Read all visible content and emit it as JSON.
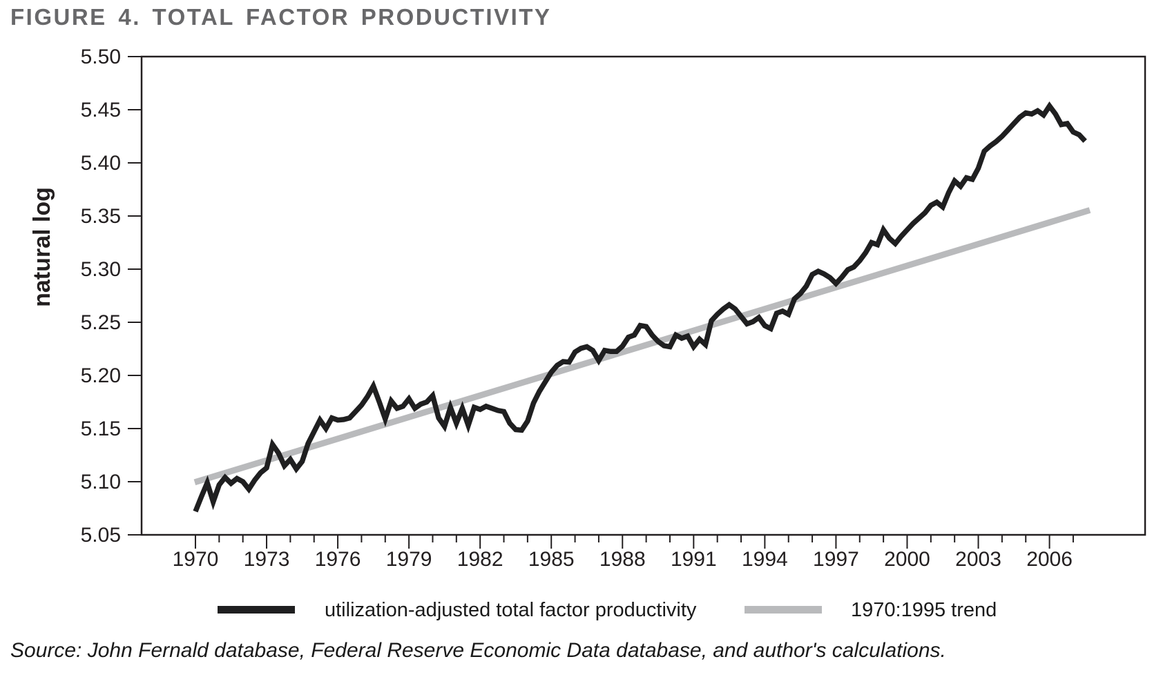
{
  "chart_data": {
    "type": "line",
    "title": "FIGURE 4. TOTAL FACTOR PRODUCTIVITY",
    "title_color": "#68686a",
    "xlabel": "",
    "ylabel": "natural log",
    "ylim": [
      5.05,
      5.5
    ],
    "xlim": [
      1967.73,
      2010.03
    ],
    "grid": false,
    "legend_position": "bottom",
    "axis_color": "#231f20",
    "y_ticks": [
      {
        "v": 5.05,
        "label": "5.05"
      },
      {
        "v": 5.1,
        "label": "5.10"
      },
      {
        "v": 5.15,
        "label": "5.15"
      },
      {
        "v": 5.2,
        "label": "5.20"
      },
      {
        "v": 5.25,
        "label": "5.25"
      },
      {
        "v": 5.3,
        "label": "5.30"
      },
      {
        "v": 5.35,
        "label": "5.35"
      },
      {
        "v": 5.4,
        "label": "5.40"
      },
      {
        "v": 5.45,
        "label": "5.45"
      },
      {
        "v": 5.5,
        "label": "5.50"
      }
    ],
    "x_minor_tick_years": [
      1970,
      1971,
      1972,
      1973,
      1974,
      1975,
      1976,
      1977,
      1978,
      1979,
      1980,
      1981,
      1982,
      1983,
      1984,
      1985,
      1986,
      1987,
      1988,
      1989,
      1990,
      1991,
      1992,
      1993,
      1994,
      1995,
      1996,
      1997,
      1998,
      1999,
      2000,
      2001,
      2002,
      2003,
      2004,
      2005,
      2006,
      2007
    ],
    "x_major_ticks": [
      {
        "v": 1970,
        "label": "1970"
      },
      {
        "v": 1973,
        "label": "1973"
      },
      {
        "v": 1976,
        "label": "1976"
      },
      {
        "v": 1979,
        "label": "1979"
      },
      {
        "v": 1982,
        "label": "1982"
      },
      {
        "v": 1985,
        "label": "1985"
      },
      {
        "v": 1988,
        "label": "1988"
      },
      {
        "v": 1991,
        "label": "1991"
      },
      {
        "v": 1994,
        "label": "1994"
      },
      {
        "v": 1997,
        "label": "1997"
      },
      {
        "v": 2000,
        "label": "2000"
      },
      {
        "v": 2003,
        "label": "2003"
      },
      {
        "v": 2006,
        "label": "2006"
      }
    ],
    "series": [
      {
        "name": "utilization-adjusted total factor productivity",
        "color": "#1f1f20",
        "stroke_width": 7.5,
        "frequency": "quarterly",
        "x_start": 1970.0,
        "x_step": 0.25,
        "y": [
          5.072,
          5.086,
          5.099,
          5.081,
          5.097,
          5.104,
          5.0985,
          5.103,
          5.1,
          5.093,
          5.1015,
          5.1085,
          5.113,
          5.135,
          5.127,
          5.115,
          5.121,
          5.112,
          5.119,
          5.136,
          5.147,
          5.158,
          5.15,
          5.16,
          5.158,
          5.1585,
          5.16,
          5.166,
          5.172,
          5.18,
          5.19,
          5.175,
          5.159,
          5.176,
          5.169,
          5.171,
          5.178,
          5.169,
          5.173,
          5.175,
          5.181,
          5.16,
          5.152,
          5.17,
          5.155,
          5.169,
          5.153,
          5.17,
          5.168,
          5.171,
          5.169,
          5.167,
          5.166,
          5.155,
          5.149,
          5.1485,
          5.157,
          5.174,
          5.185,
          5.194,
          5.203,
          5.2095,
          5.213,
          5.2125,
          5.222,
          5.2255,
          5.227,
          5.2235,
          5.214,
          5.2235,
          5.2225,
          5.2225,
          5.2275,
          5.236,
          5.238,
          5.247,
          5.246,
          5.238,
          5.232,
          5.228,
          5.227,
          5.238,
          5.235,
          5.237,
          5.227,
          5.234,
          5.229,
          5.2515,
          5.2575,
          5.2625,
          5.2665,
          5.2625,
          5.2555,
          5.2485,
          5.2505,
          5.2545,
          5.2468,
          5.244,
          5.2585,
          5.2605,
          5.2575,
          5.272,
          5.277,
          5.284,
          5.295,
          5.298,
          5.2955,
          5.292,
          5.2865,
          5.2925,
          5.2995,
          5.302,
          5.308,
          5.3155,
          5.325,
          5.323,
          5.337,
          5.329,
          5.324,
          5.331,
          5.337,
          5.343,
          5.348,
          5.353,
          5.36,
          5.363,
          5.3585,
          5.372,
          5.383,
          5.378,
          5.386,
          5.3845,
          5.395,
          5.411,
          5.416,
          5.42,
          5.425,
          5.431,
          5.437,
          5.443,
          5.447,
          5.446,
          5.449,
          5.445,
          5.4535,
          5.446,
          5.436,
          5.437,
          5.429,
          5.4265,
          5.4205
        ]
      },
      {
        "name": "1970:1995 trend",
        "color": "#b9babc",
        "stroke_width": 9,
        "x": [
          1969.97,
          2007.7
        ],
        "y": [
          5.0995,
          5.3555
        ]
      }
    ],
    "source": "Source: John Fernald database, Federal Reserve Economic Data database, and author's calculations."
  }
}
